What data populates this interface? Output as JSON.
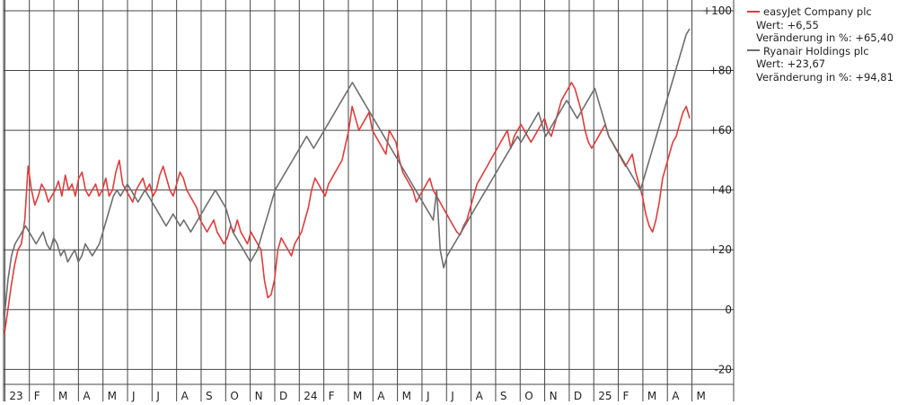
{
  "chart_data": {
    "type": "line",
    "ylim": [
      -25,
      100
    ],
    "y_ticks": [
      {
        "value": 100,
        "label": "+100"
      },
      {
        "value": 80,
        "label": "+80"
      },
      {
        "value": 60,
        "label": "+60"
      },
      {
        "value": 40,
        "label": "+40"
      },
      {
        "value": 20,
        "label": "+20"
      },
      {
        "value": 0,
        "label": "0"
      },
      {
        "value": -20,
        "label": "-20"
      }
    ],
    "x_tick_labels": [
      "23",
      "F",
      "M",
      "A",
      "M",
      "J",
      "J",
      "A",
      "S",
      "O",
      "N",
      "D",
      "24",
      "F",
      "M",
      "A",
      "M",
      "J",
      "J",
      "A",
      "S",
      "O",
      "N",
      "D",
      "25",
      "F",
      "M",
      "A",
      "M"
    ],
    "grid": true,
    "legend_position": "right",
    "series": [
      {
        "name": "easyJet Company plc",
        "color": "#e03c3c",
        "value_label": "Wert: +6,55",
        "change_label": "Veränderung in %: +65,40",
        "values": [
          -8,
          0,
          8,
          15,
          20,
          22,
          30,
          48,
          40,
          35,
          38,
          42,
          40,
          36,
          38,
          40,
          43,
          38,
          45,
          40,
          42,
          38,
          44,
          46,
          40,
          38,
          40,
          42,
          38,
          40,
          44,
          38,
          40,
          46,
          50,
          42,
          40,
          38,
          36,
          40,
          42,
          44,
          40,
          42,
          38,
          40,
          45,
          48,
          44,
          40,
          38,
          42,
          46,
          44,
          40,
          38,
          36,
          34,
          30,
          28,
          26,
          28,
          30,
          26,
          24,
          22,
          24,
          28,
          26,
          30,
          26,
          24,
          22,
          26,
          24,
          22,
          20,
          10,
          4,
          5,
          10,
          20,
          24,
          22,
          20,
          18,
          22,
          24,
          26,
          30,
          34,
          40,
          44,
          42,
          40,
          38,
          42,
          44,
          46,
          48,
          50,
          55,
          60,
          68,
          64,
          60,
          62,
          64,
          66,
          60,
          58,
          56,
          54,
          52,
          60,
          58,
          56,
          50,
          46,
          44,
          42,
          40,
          36,
          38,
          40,
          42,
          44,
          40,
          38,
          36,
          34,
          32,
          30,
          28,
          26,
          25,
          28,
          30,
          34,
          38,
          42,
          44,
          46,
          48,
          50,
          52,
          54,
          56,
          58,
          60,
          54,
          58,
          60,
          62,
          60,
          58,
          56,
          58,
          60,
          62,
          64,
          60,
          58,
          62,
          66,
          70,
          72,
          74,
          76,
          74,
          70,
          66,
          60,
          56,
          54,
          56,
          58,
          60,
          62,
          58,
          56,
          54,
          52,
          50,
          48,
          50,
          52,
          46,
          42,
          38,
          32,
          28,
          26,
          30,
          36,
          44,
          48,
          52,
          56,
          58,
          62,
          66,
          68,
          64
        ]
      },
      {
        "name": "Ryanair Holdings plc",
        "color": "#6e6e6e",
        "value_label": "Wert: +23,67",
        "change_label": "Veränderung in %: +94,81",
        "values": [
          -2,
          10,
          18,
          22,
          24,
          26,
          28,
          26,
          24,
          22,
          24,
          26,
          22,
          20,
          24,
          22,
          18,
          20,
          16,
          18,
          20,
          16,
          18,
          22,
          20,
          18,
          20,
          22,
          26,
          30,
          34,
          38,
          40,
          38,
          40,
          42,
          40,
          38,
          36,
          38,
          40,
          38,
          36,
          34,
          32,
          30,
          28,
          30,
          32,
          30,
          28,
          30,
          28,
          26,
          28,
          30,
          32,
          34,
          36,
          38,
          40,
          38,
          36,
          34,
          30,
          26,
          24,
          22,
          20,
          18,
          16,
          18,
          20,
          24,
          28,
          32,
          36,
          40,
          42,
          44,
          46,
          48,
          50,
          52,
          54,
          56,
          58,
          56,
          54,
          56,
          58,
          60,
          62,
          64,
          66,
          68,
          70,
          72,
          74,
          76,
          74,
          72,
          70,
          68,
          66,
          64,
          62,
          60,
          58,
          56,
          54,
          52,
          50,
          48,
          46,
          44,
          42,
          40,
          38,
          36,
          34,
          32,
          30,
          40,
          20,
          14,
          18,
          20,
          22,
          24,
          26,
          28,
          30,
          32,
          34,
          36,
          38,
          40,
          42,
          44,
          46,
          48,
          50,
          52,
          54,
          56,
          58,
          56,
          58,
          60,
          62,
          64,
          66,
          62,
          58,
          60,
          62,
          64,
          66,
          68,
          70,
          68,
          66,
          64,
          66,
          68,
          70,
          72,
          74,
          70,
          66,
          62,
          58,
          56,
          54,
          52,
          50,
          48,
          46,
          44,
          42,
          40,
          44,
          48,
          52,
          56,
          60,
          64,
          68,
          72,
          76,
          80,
          84,
          88,
          92,
          94
        ]
      }
    ]
  }
}
